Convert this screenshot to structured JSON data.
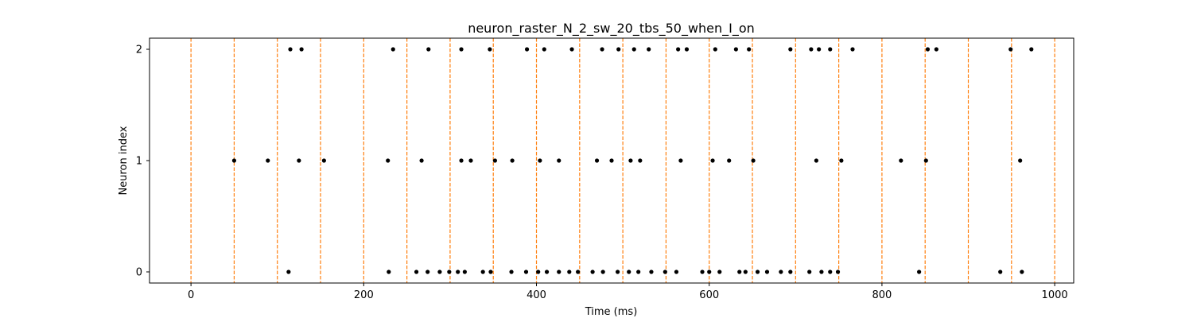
{
  "chart_data": {
    "type": "scatter",
    "title": "neuron_raster_N_2_sw_20_tbs_50_when_I_on",
    "xlabel": "Time (ms)",
    "ylabel": "Neuron index",
    "xlim": [
      -48,
      1022
    ],
    "ylim": [
      -0.1,
      2.1
    ],
    "xticks": [
      0,
      200,
      400,
      600,
      800,
      1000
    ],
    "yticks": [
      0,
      1,
      2
    ],
    "marker_color": "#000000",
    "vline_color": "#ff7f0e",
    "vline_style": "dashed",
    "vlines": [
      0,
      50,
      100,
      150,
      200,
      250,
      300,
      350,
      400,
      450,
      500,
      550,
      600,
      650,
      700,
      750,
      800,
      850,
      900,
      950,
      1000
    ],
    "series": [
      {
        "neuron": 0,
        "spike_times": [
          113,
          229,
          261,
          274,
          288,
          299,
          309,
          317,
          338,
          347,
          371,
          388,
          402,
          412,
          426,
          438,
          448,
          465,
          477,
          494,
          507,
          518,
          533,
          549,
          562,
          592,
          600,
          612,
          635,
          642,
          656,
          667,
          683,
          694,
          716,
          730,
          740,
          749,
          843,
          937,
          962
        ]
      },
      {
        "neuron": 1,
        "spike_times": [
          50,
          89,
          125,
          154,
          228,
          267,
          313,
          324,
          352,
          372,
          404,
          426,
          470,
          487,
          509,
          520,
          567,
          604,
          623,
          651,
          724,
          753,
          822,
          851,
          960
        ]
      },
      {
        "neuron": 2,
        "spike_times": [
          115,
          128,
          234,
          275,
          313,
          346,
          389,
          409,
          441,
          476,
          495,
          513,
          530,
          564,
          574,
          607,
          631,
          646,
          694,
          718,
          727,
          740,
          766,
          853,
          863,
          949,
          973
        ]
      }
    ]
  }
}
